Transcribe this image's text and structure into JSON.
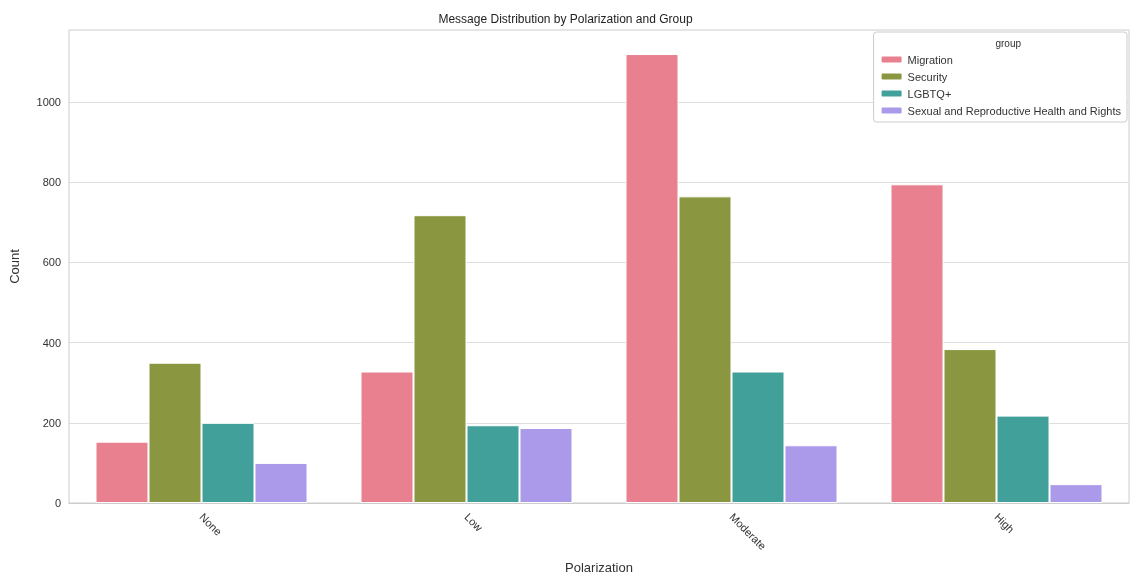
{
  "chart_data": {
    "type": "bar",
    "title": "Message Distribution by Polarization and Group",
    "xlabel": "Polarization",
    "ylabel": "Count",
    "legend_title": "group",
    "categories": [
      "None",
      "Low",
      "Moderate",
      "High"
    ],
    "series": [
      {
        "name": "Migration",
        "color": "#e8808f",
        "values": [
          153,
          328,
          1120,
          795
        ]
      },
      {
        "name": "Security",
        "color": "#8b9740",
        "values": [
          350,
          718,
          765,
          384
        ]
      },
      {
        "name": "LGBTQ+",
        "color": "#41a099",
        "values": [
          200,
          194,
          328,
          218
        ]
      },
      {
        "name": "Sexual and Reproductive Health and Rights",
        "color": "#ab99e9",
        "values": [
          100,
          187,
          144,
          47
        ]
      }
    ],
    "ylim": [
      0,
      1180
    ],
    "yticks": [
      0,
      200,
      400,
      600,
      800,
      1000
    ],
    "grid": "y",
    "legend": "top right"
  }
}
